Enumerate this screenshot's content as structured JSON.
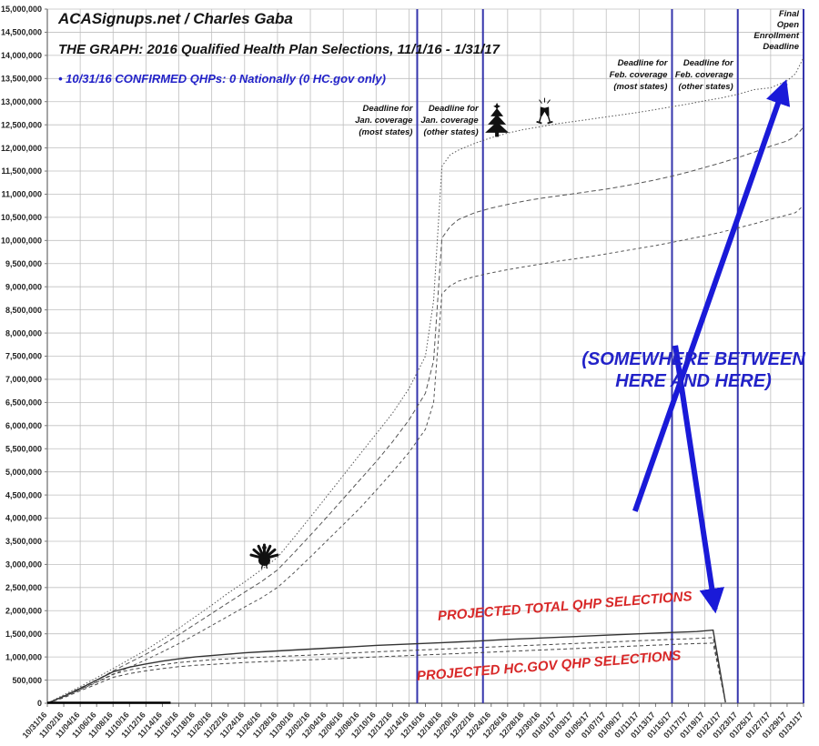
{
  "header": {
    "byline": "ACASignups.net / Charles Gaba",
    "title": "THE GRAPH: 2016 Qualified Health Plan Selections, 11/1/16 - 1/31/17",
    "status_note": "• 10/31/16 CONFIRMED QHPs: 0 Nationally (0 HC.gov only)"
  },
  "colors": {
    "grid": "#bfbfbf",
    "axis": "#777777",
    "deadline_line": "#3535ac",
    "arrow": "#1a1ad8",
    "annotation_blue": "#2222c8",
    "annotation_red": "#d82828",
    "icon_black": "#111111"
  },
  "chart_data": {
    "type": "line",
    "title": "THE GRAPH: 2016 Qualified Health Plan Selections, 11/1/16 - 1/31/17",
    "grid": true,
    "legend": "none",
    "x_axis": {
      "start_label": "10/31/16",
      "end_label": "01/31/17",
      "total_days": 92,
      "tick_interval_days": 2,
      "tick_labels": [
        "10/31/16",
        "11/02/16",
        "11/04/16",
        "11/06/16",
        "11/08/16",
        "11/10/16",
        "11/12/16",
        "11/14/16",
        "11/16/16",
        "11/18/16",
        "11/20/16",
        "11/22/16",
        "11/24/16",
        "11/26/16",
        "11/28/16",
        "11/30/16",
        "12/02/16",
        "12/04/16",
        "12/06/16",
        "12/08/16",
        "12/10/16",
        "12/12/16",
        "12/14/16",
        "12/16/16",
        "12/18/16",
        "12/20/16",
        "12/22/16",
        "12/24/16",
        "12/26/16",
        "12/28/16",
        "12/30/16",
        "01/01/17",
        "01/03/17",
        "01/05/17",
        "01/07/17",
        "01/09/17",
        "01/11/17",
        "01/13/17",
        "01/15/17",
        "01/17/17",
        "01/19/17",
        "01/21/17",
        "01/23/17",
        "01/25/17",
        "01/27/17",
        "01/29/17",
        "01/31/17"
      ]
    },
    "y_axis": {
      "min": 0,
      "max": 15000000,
      "step": 500000,
      "tick_labels": [
        "0",
        "500,000",
        "1,000,000",
        "1,500,000",
        "2,000,000",
        "2,500,000",
        "3,000,000",
        "3,500,000",
        "4,000,000",
        "4,500,000",
        "5,000,000",
        "5,500,000",
        "6,000,000",
        "6,500,000",
        "7,000,000",
        "7,500,000",
        "8,000,000",
        "8,500,000",
        "9,000,000",
        "9,500,000",
        "10,000,000",
        "10,500,000",
        "11,000,000",
        "11,500,000",
        "12,000,000",
        "12,500,000",
        "13,000,000",
        "13,500,000",
        "14,000,000",
        "14,500,000",
        "15,000,000"
      ]
    },
    "deadlines": [
      {
        "day": 45,
        "label": [
          "Deadline for",
          "Jan. coverage",
          "(most states)"
        ]
      },
      {
        "day": 53,
        "label": [
          "Deadline for",
          "Jan. coverage",
          "(other states)"
        ]
      },
      {
        "day": 76,
        "label": [
          "Deadline for",
          "Feb. coverage",
          "(most states)"
        ]
      },
      {
        "day": 84,
        "label": [
          "Deadline for",
          "Feb. coverage",
          "(other states)"
        ]
      },
      {
        "day": 92,
        "label": [
          "Final",
          "Open",
          "Enrollment",
          "Deadline"
        ]
      }
    ],
    "series": [
      {
        "id": "projection-high",
        "color": "#555555",
        "width": 1,
        "dash": "1.5 2.2",
        "points": [
          [
            0,
            0
          ],
          [
            2,
            0.18
          ],
          [
            4,
            0.36
          ],
          [
            6,
            0.55
          ],
          [
            8,
            0.75
          ],
          [
            10,
            0.95
          ],
          [
            12,
            1.15
          ],
          [
            14,
            1.38
          ],
          [
            16,
            1.62
          ],
          [
            18,
            1.87
          ],
          [
            20,
            2.12
          ],
          [
            22,
            2.38
          ],
          [
            24,
            2.62
          ],
          [
            26,
            2.88
          ],
          [
            28,
            3.15
          ],
          [
            30,
            3.58
          ],
          [
            32,
            4.02
          ],
          [
            34,
            4.47
          ],
          [
            36,
            4.92
          ],
          [
            38,
            5.37
          ],
          [
            40,
            5.82
          ],
          [
            42,
            6.27
          ],
          [
            44,
            6.8
          ],
          [
            46,
            7.5
          ],
          [
            47,
            8.7
          ],
          [
            48,
            11.6
          ],
          [
            49,
            11.85
          ],
          [
            50,
            11.95
          ],
          [
            52,
            12.1
          ],
          [
            54,
            12.22
          ],
          [
            56,
            12.32
          ],
          [
            58,
            12.4
          ],
          [
            60,
            12.46
          ],
          [
            62,
            12.52
          ],
          [
            64,
            12.57
          ],
          [
            66,
            12.62
          ],
          [
            68,
            12.67
          ],
          [
            70,
            12.72
          ],
          [
            72,
            12.77
          ],
          [
            74,
            12.83
          ],
          [
            76,
            12.89
          ],
          [
            78,
            12.95
          ],
          [
            80,
            13.02
          ],
          [
            82,
            13.08
          ],
          [
            84,
            13.16
          ],
          [
            86,
            13.26
          ],
          [
            88,
            13.3
          ],
          [
            90,
            13.45
          ],
          [
            91,
            13.6
          ],
          [
            92,
            13.95
          ]
        ]
      },
      {
        "id": "projection-mid",
        "color": "#555555",
        "width": 1,
        "dash": "5 3",
        "points": [
          [
            0,
            0
          ],
          [
            2,
            0.16
          ],
          [
            4,
            0.33
          ],
          [
            6,
            0.5
          ],
          [
            8,
            0.7
          ],
          [
            10,
            0.88
          ],
          [
            12,
            1.06
          ],
          [
            14,
            1.26
          ],
          [
            16,
            1.48
          ],
          [
            18,
            1.71
          ],
          [
            20,
            1.94
          ],
          [
            22,
            2.17
          ],
          [
            24,
            2.4
          ],
          [
            26,
            2.62
          ],
          [
            28,
            2.88
          ],
          [
            30,
            3.25
          ],
          [
            32,
            3.63
          ],
          [
            34,
            4.02
          ],
          [
            36,
            4.42
          ],
          [
            38,
            4.82
          ],
          [
            40,
            5.22
          ],
          [
            42,
            5.65
          ],
          [
            44,
            6.12
          ],
          [
            46,
            6.7
          ],
          [
            47,
            7.4
          ],
          [
            48,
            10.05
          ],
          [
            49,
            10.3
          ],
          [
            50,
            10.45
          ],
          [
            52,
            10.6
          ],
          [
            54,
            10.7
          ],
          [
            56,
            10.78
          ],
          [
            58,
            10.85
          ],
          [
            60,
            10.91
          ],
          [
            62,
            10.96
          ],
          [
            64,
            11.01
          ],
          [
            66,
            11.06
          ],
          [
            68,
            11.11
          ],
          [
            70,
            11.17
          ],
          [
            72,
            11.24
          ],
          [
            74,
            11.31
          ],
          [
            76,
            11.39
          ],
          [
            78,
            11.48
          ],
          [
            80,
            11.58
          ],
          [
            82,
            11.68
          ],
          [
            84,
            11.79
          ],
          [
            86,
            11.91
          ],
          [
            88,
            12.04
          ],
          [
            90,
            12.15
          ],
          [
            91,
            12.25
          ],
          [
            92,
            12.45
          ]
        ]
      },
      {
        "id": "projection-low",
        "color": "#555555",
        "width": 1,
        "dash": "3.5 3",
        "points": [
          [
            0,
            0
          ],
          [
            2,
            0.14
          ],
          [
            4,
            0.29
          ],
          [
            6,
            0.45
          ],
          [
            8,
            0.62
          ],
          [
            10,
            0.78
          ],
          [
            12,
            0.94
          ],
          [
            14,
            1.11
          ],
          [
            16,
            1.29
          ],
          [
            18,
            1.48
          ],
          [
            20,
            1.68
          ],
          [
            22,
            1.88
          ],
          [
            24,
            2.08
          ],
          [
            26,
            2.27
          ],
          [
            28,
            2.5
          ],
          [
            30,
            2.82
          ],
          [
            32,
            3.16
          ],
          [
            34,
            3.51
          ],
          [
            36,
            3.86
          ],
          [
            38,
            4.21
          ],
          [
            40,
            4.6
          ],
          [
            42,
            5.0
          ],
          [
            44,
            5.42
          ],
          [
            46,
            5.92
          ],
          [
            47,
            6.5
          ],
          [
            48,
            8.85
          ],
          [
            49,
            9.02
          ],
          [
            50,
            9.12
          ],
          [
            52,
            9.22
          ],
          [
            54,
            9.3
          ],
          [
            56,
            9.37
          ],
          [
            58,
            9.43
          ],
          [
            60,
            9.49
          ],
          [
            62,
            9.55
          ],
          [
            64,
            9.6
          ],
          [
            66,
            9.65
          ],
          [
            68,
            9.71
          ],
          [
            70,
            9.77
          ],
          [
            72,
            9.83
          ],
          [
            74,
            9.89
          ],
          [
            76,
            9.96
          ],
          [
            78,
            10.03
          ],
          [
            80,
            10.1
          ],
          [
            82,
            10.18
          ],
          [
            84,
            10.27
          ],
          [
            86,
            10.36
          ],
          [
            88,
            10.46
          ],
          [
            90,
            10.55
          ],
          [
            91,
            10.6
          ],
          [
            92,
            10.75
          ]
        ]
      },
      {
        "id": "projected-total-qhp-selections",
        "color": "#333333",
        "width": 1.4,
        "dash": "",
        "points": [
          [
            0,
            0
          ],
          [
            2,
            0.15
          ],
          [
            4,
            0.32
          ],
          [
            6,
            0.5
          ],
          [
            8,
            0.68
          ],
          [
            10,
            0.78
          ],
          [
            12,
            0.85
          ],
          [
            14,
            0.91
          ],
          [
            16,
            0.96
          ],
          [
            18,
            1.0
          ],
          [
            20,
            1.03
          ],
          [
            22,
            1.06
          ],
          [
            24,
            1.09
          ],
          [
            26,
            1.11
          ],
          [
            28,
            1.13
          ],
          [
            32,
            1.17
          ],
          [
            36,
            1.21
          ],
          [
            40,
            1.25
          ],
          [
            44,
            1.28
          ],
          [
            48,
            1.31
          ],
          [
            52,
            1.34
          ],
          [
            56,
            1.38
          ],
          [
            60,
            1.41
          ],
          [
            64,
            1.44
          ],
          [
            68,
            1.47
          ],
          [
            72,
            1.5
          ],
          [
            76,
            1.53
          ],
          [
            79,
            1.55
          ],
          [
            81,
            1.58
          ],
          [
            82.5,
            0.02
          ]
        ]
      },
      {
        "id": "projected-hcgov-qhp-selections-1",
        "color": "#444444",
        "width": 1,
        "dash": "4 3",
        "points": [
          [
            0,
            0
          ],
          [
            2,
            0.14
          ],
          [
            4,
            0.3
          ],
          [
            6,
            0.46
          ],
          [
            8,
            0.63
          ],
          [
            10,
            0.72
          ],
          [
            12,
            0.78
          ],
          [
            14,
            0.83
          ],
          [
            16,
            0.88
          ],
          [
            18,
            0.91
          ],
          [
            20,
            0.94
          ],
          [
            24,
            0.98
          ],
          [
            28,
            1.01
          ],
          [
            32,
            1.04
          ],
          [
            36,
            1.08
          ],
          [
            40,
            1.11
          ],
          [
            44,
            1.14
          ],
          [
            48,
            1.17
          ],
          [
            52,
            1.2
          ],
          [
            56,
            1.23
          ],
          [
            60,
            1.26
          ],
          [
            64,
            1.29
          ],
          [
            68,
            1.32
          ],
          [
            72,
            1.35
          ],
          [
            76,
            1.38
          ],
          [
            79,
            1.4
          ],
          [
            81,
            1.42
          ],
          [
            82.5,
            0.02
          ]
        ]
      },
      {
        "id": "projected-hcgov-qhp-selections-2",
        "color": "#444444",
        "width": 1,
        "dash": "4 3",
        "points": [
          [
            0,
            0
          ],
          [
            2,
            0.12
          ],
          [
            4,
            0.27
          ],
          [
            6,
            0.41
          ],
          [
            8,
            0.56
          ],
          [
            10,
            0.64
          ],
          [
            12,
            0.7
          ],
          [
            14,
            0.75
          ],
          [
            16,
            0.79
          ],
          [
            18,
            0.82
          ],
          [
            20,
            0.84
          ],
          [
            24,
            0.88
          ],
          [
            28,
            0.91
          ],
          [
            32,
            0.94
          ],
          [
            36,
            0.97
          ],
          [
            40,
            1.0
          ],
          [
            44,
            1.03
          ],
          [
            48,
            1.06
          ],
          [
            52,
            1.09
          ],
          [
            56,
            1.12
          ],
          [
            60,
            1.15
          ],
          [
            64,
            1.18
          ],
          [
            68,
            1.21
          ],
          [
            72,
            1.24
          ],
          [
            76,
            1.27
          ],
          [
            79,
            1.29
          ],
          [
            81,
            1.3
          ],
          [
            82.5,
            0.02
          ]
        ]
      },
      {
        "id": "confirmed-actual-zero",
        "color": "#000000",
        "width": 2.4,
        "dash": "",
        "points": [
          [
            0,
            0.01
          ],
          [
            15,
            0.01
          ]
        ]
      }
    ],
    "icons": [
      {
        "name": "turkey-icon",
        "day": 26.4,
        "value_millions": 2.95
      },
      {
        "name": "christmas-tree-icon",
        "day": 54.7,
        "value_millions": 12.25
      },
      {
        "name": "champagne-glasses-icon",
        "day": 60.5,
        "value_millions": 12.55
      }
    ],
    "arrows": [
      {
        "id": "arrow-to-final-deadline",
        "from": [
          71.5,
          4.15
        ],
        "to": [
          89.9,
          13.47
        ]
      },
      {
        "id": "arrow-to-crash-point",
        "from": [
          76.4,
          7.73
        ],
        "to": [
          81.3,
          1.95
        ]
      }
    ],
    "annotations": {
      "somewhere_line1": "(SOMEWHERE BETWEEN",
      "somewhere_line2": "HERE AND HERE)",
      "projected_total": "PROJECTED TOTAL QHP SELECTIONS",
      "projected_hcgov": "PROJECTED HC.GOV QHP SELECTIONS"
    }
  }
}
